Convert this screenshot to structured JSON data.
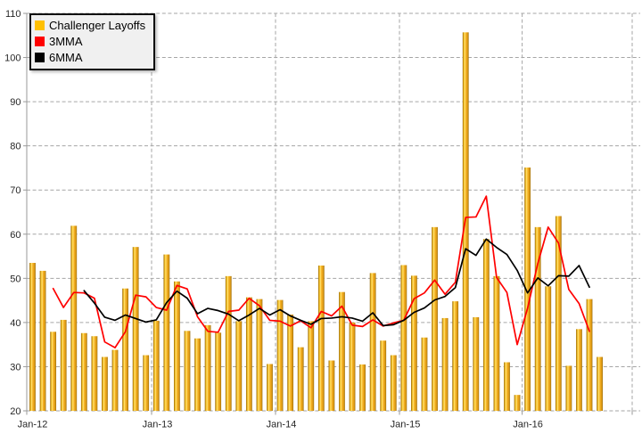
{
  "chart_data": {
    "type": "combo-bar-line",
    "title": "",
    "xlabel": "",
    "ylabel": "",
    "ylim": [
      20,
      110
    ],
    "y_ticks": [
      20,
      30,
      40,
      50,
      60,
      70,
      80,
      90,
      100,
      110
    ],
    "x_tick_labels": [
      "Jan-12",
      "Jan-13",
      "Jan-14",
      "Jan-15",
      "Jan-16"
    ],
    "x_tick_month_indices": [
      0,
      12,
      24,
      36,
      48
    ],
    "grid": true,
    "legend_position": "top-left",
    "categories": [
      "Jan-12",
      "Feb-12",
      "Mar-12",
      "Apr-12",
      "May-12",
      "Jun-12",
      "Jul-12",
      "Aug-12",
      "Sep-12",
      "Oct-12",
      "Nov-12",
      "Dec-12",
      "Jan-13",
      "Feb-13",
      "Mar-13",
      "Apr-13",
      "May-13",
      "Jun-13",
      "Jul-13",
      "Aug-13",
      "Sep-13",
      "Oct-13",
      "Nov-13",
      "Dec-13",
      "Jan-14",
      "Feb-14",
      "Mar-14",
      "Apr-14",
      "May-14",
      "Jun-14",
      "Jul-14",
      "Aug-14",
      "Sep-14",
      "Oct-14",
      "Nov-14",
      "Dec-14",
      "Jan-15",
      "Feb-15",
      "Mar-15",
      "Apr-15",
      "May-15",
      "Jun-15",
      "Jul-15",
      "Aug-15",
      "Sep-15",
      "Oct-15",
      "Nov-15",
      "Dec-15",
      "Jan-16",
      "Feb-16",
      "Mar-16",
      "Apr-16",
      "May-16",
      "Jun-16",
      "Jul-16",
      "Aug-16"
    ],
    "series": [
      {
        "name": "Challenger Layoffs",
        "type": "bar",
        "color": "#FFC000",
        "start_index": 0,
        "values": [
          53.5,
          51.7,
          37.9,
          40.6,
          61.9,
          37.6,
          36.9,
          32.2,
          33.8,
          47.7,
          57.1,
          32.6,
          40.4,
          55.4,
          49.3,
          38.1,
          36.4,
          39.4,
          37.7,
          50.5,
          40.3,
          45.7,
          45.3,
          30.6,
          45.1,
          41.8,
          34.4,
          40.3,
          52.9,
          31.4,
          46.9,
          40.0,
          30.5,
          51.2,
          35.9,
          32.6,
          53.0,
          50.6,
          36.6,
          61.6,
          41.0,
          44.8,
          105.7,
          41.2,
          58.9,
          50.5,
          31.0,
          23.6,
          75.1,
          61.6,
          48.2,
          64.1,
          30.2,
          38.5,
          45.3,
          32.2
        ]
      },
      {
        "name": "3MMA",
        "type": "line",
        "color": "#FF0000",
        "start_index": 2,
        "values": [
          47.7,
          43.4,
          46.8,
          46.7,
          45.5,
          35.6,
          34.3,
          37.9,
          46.2,
          45.8,
          43.4,
          42.8,
          48.4,
          47.6,
          41.3,
          38.0,
          37.8,
          42.5,
          42.8,
          45.5,
          43.8,
          40.5,
          40.3,
          39.2,
          40.4,
          38.8,
          42.5,
          41.5,
          43.7,
          39.4,
          39.1,
          40.6,
          39.2,
          39.9,
          40.5,
          45.4,
          46.7,
          49.6,
          46.4,
          49.1,
          63.8,
          63.9,
          68.6,
          50.2,
          46.8,
          35.0,
          43.2,
          53.4,
          61.6,
          58.0,
          47.5,
          44.3,
          38.0
        ]
      },
      {
        "name": "6MMA",
        "type": "line",
        "color": "#000000",
        "start_index": 5,
        "values": [
          47.2,
          44.4,
          41.2,
          40.5,
          41.7,
          40.9,
          40.1,
          40.6,
          44.5,
          47.1,
          45.5,
          42.0,
          43.2,
          42.7,
          41.9,
          40.4,
          41.7,
          43.2,
          41.7,
          42.9,
          41.5,
          40.5,
          39.6,
          40.9,
          41.0,
          41.3,
          41.0,
          40.3,
          42.2,
          39.3,
          39.5,
          40.5,
          42.3,
          43.3,
          45.1,
          45.9,
          47.9,
          56.7,
          55.2,
          58.9,
          57.0,
          55.4,
          51.8,
          46.7,
          50.1,
          48.3,
          50.6,
          50.5,
          52.9,
          48.0
        ]
      }
    ],
    "style": {
      "background_color": "#FFFFFF",
      "gridline_color": "#A6A6A6",
      "axis_color": "#9A9A9A",
      "tick_label_color": "#262626",
      "legend_background": "#F0F0F0",
      "legend_border": "#0A0A0A"
    }
  }
}
